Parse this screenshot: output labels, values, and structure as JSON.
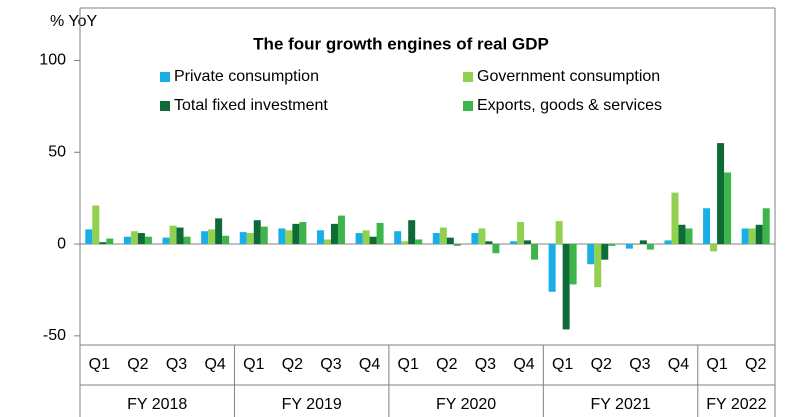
{
  "chart_data": {
    "type": "bar",
    "title": "The four growth engines of real GDP",
    "y_label": "% YoY",
    "categories": [
      [
        "Q1",
        "FY 2018"
      ],
      [
        "Q2",
        "FY 2018"
      ],
      [
        "Q3",
        "FY 2018"
      ],
      [
        "Q4",
        "FY 2018"
      ],
      [
        "Q1",
        "FY 2019"
      ],
      [
        "Q2",
        "FY 2019"
      ],
      [
        "Q3",
        "FY 2019"
      ],
      [
        "Q4",
        "FY 2019"
      ],
      [
        "Q1",
        "FY 2020"
      ],
      [
        "Q2",
        "FY 2020"
      ],
      [
        "Q3",
        "FY 2020"
      ],
      [
        "Q4",
        "FY 2020"
      ],
      [
        "Q1",
        "FY 2021"
      ],
      [
        "Q2",
        "FY 2021"
      ],
      [
        "Q3",
        "FY 2021"
      ],
      [
        "Q4",
        "FY 2021"
      ],
      [
        "Q1",
        "FY 2022"
      ],
      [
        "Q2",
        "FY 2022"
      ]
    ],
    "series": [
      {
        "name": "Private consumption",
        "color": "#1aaee6",
        "values": [
          8,
          4,
          3.5,
          7,
          6.5,
          8.5,
          7.5,
          6,
          7,
          6,
          6,
          1.5,
          -26,
          -11,
          -2.5,
          2,
          19.5,
          8.5
        ]
      },
      {
        "name": "Government consumption",
        "color": "#92d050",
        "values": [
          21,
          7,
          10,
          8,
          6,
          7.5,
          2.5,
          7.5,
          1.5,
          9,
          8.5,
          12,
          12.5,
          -23.5,
          -0.5,
          28,
          -4,
          8.5
        ]
      },
      {
        "name": "Total fixed investment",
        "color": "#0e6b37",
        "values": [
          1,
          6,
          9,
          14,
          13,
          11,
          11,
          4,
          13,
          3.5,
          1.5,
          2,
          -46.5,
          -8.5,
          2,
          10.5,
          55,
          10.5
        ]
      },
      {
        "name": "Exports, goods & services",
        "color": "#3db54a",
        "values": [
          3,
          4,
          4,
          4.5,
          9.5,
          12,
          15.5,
          11.5,
          2.5,
          -1,
          -5,
          -8.5,
          -22,
          -1,
          -3,
          8.5,
          39,
          19.5
        ]
      }
    ],
    "ylim": [
      -55,
      100
    ],
    "yticks": [
      -50,
      0,
      50,
      100
    ],
    "legend": "top"
  }
}
